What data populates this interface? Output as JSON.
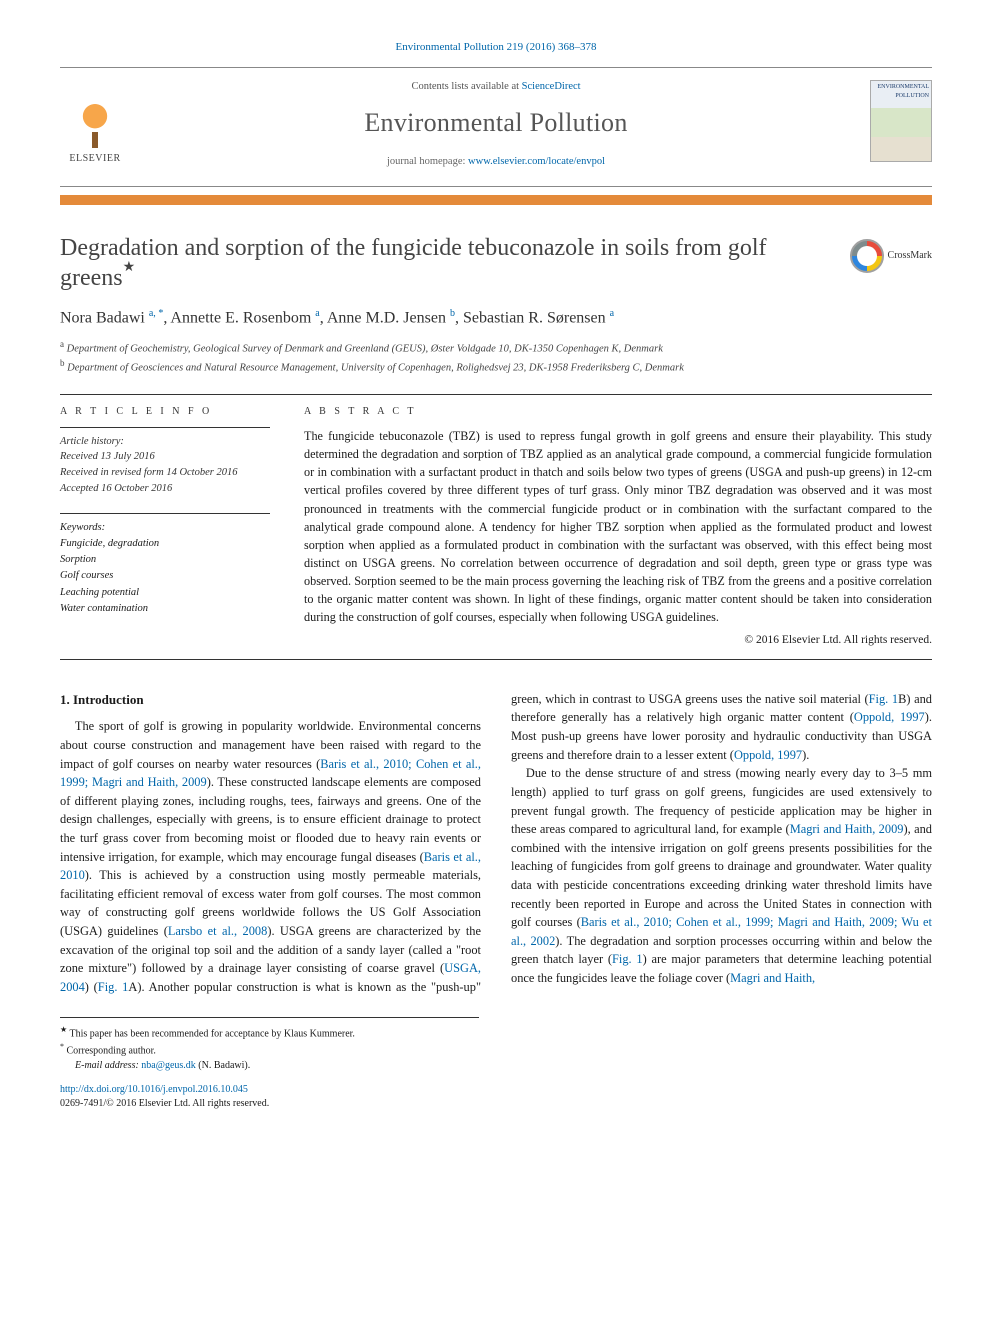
{
  "journal_ref": "Environmental Pollution 219 (2016) 368–378",
  "contents_line_prefix": "Contents lists available at ",
  "contents_line_link": "ScienceDirect",
  "journal_name": "Environmental Pollution",
  "homepage_prefix": "journal homepage: ",
  "homepage_link": "www.elsevier.com/locate/envpol",
  "publisher": "ELSEVIER",
  "cover_label": "ENVIRONMENTAL POLLUTION",
  "crossmark_label": "CrossMark",
  "title": "Degradation and sorption of the fungicide tebuconazole in soils from golf greens",
  "title_star": "★",
  "authors_html": "Nora Badawi <sup>a, *</sup>, Annette E. Rosenbom <sup>a</sup>, Anne M.D. Jensen <sup>b</sup>, Sebastian R. Sørensen <sup>a</sup>",
  "affiliations": {
    "a": "Department of Geochemistry, Geological Survey of Denmark and Greenland (GEUS), Øster Voldgade 10, DK-1350 Copenhagen K, Denmark",
    "b": "Department of Geosciences and Natural Resource Management, University of Copenhagen, Rolighedsvej 23, DK-1958 Frederiksberg C, Denmark"
  },
  "article_info_head": "A R T I C L E  I N F O",
  "abstract_head": "A B S T R A C T",
  "history_label": "Article history:",
  "history": {
    "received": "Received 13 July 2016",
    "revised": "Received in revised form 14 October 2016",
    "accepted": "Accepted 16 October 2016"
  },
  "keywords_label": "Keywords:",
  "keywords": [
    "Fungicide, degradation",
    "Sorption",
    "Golf courses",
    "Leaching potential",
    "Water contamination"
  ],
  "abstract": "The fungicide tebuconazole (TBZ) is used to repress fungal growth in golf greens and ensure their playability. This study determined the degradation and sorption of TBZ applied as an analytical grade compound, a commercial fungicide formulation or in combination with a surfactant product in thatch and soils below two types of greens (USGA and push-up greens) in 12-cm vertical profiles covered by three different types of turf grass. Only minor TBZ degradation was observed and it was most pronounced in treatments with the commercial fungicide product or in combination with the surfactant compared to the analytical grade compound alone. A tendency for higher TBZ sorption when applied as the formulated product and lowest sorption when applied as a formulated product in combination with the surfactant was observed, with this effect being most distinct on USGA greens. No correlation between occurrence of degradation and soil depth, green type or grass type was observed. Sorption seemed to be the main process governing the leaching risk of TBZ from the greens and a positive correlation to the organic matter content was shown. In light of these findings, organic matter content should be taken into consideration during the construction of golf courses, especially when following USGA guidelines.",
  "copyright": "© 2016 Elsevier Ltd. All rights reserved.",
  "section1_head": "1. Introduction",
  "body_p1": "The sport of golf is growing in popularity worldwide. Environmental concerns about course construction and management have been raised with regard to the impact of golf courses on nearby water resources (",
  "cite1": "Baris et al., 2010; Cohen et al., 1999; Magri and Haith, 2009",
  "body_p1b": "). These constructed landscape elements are composed of different playing zones, including roughs, tees, fairways and greens. One of the design challenges, especially with greens, is to ensure efficient drainage to protect the turf grass cover from becoming moist or flooded due to heavy rain events or intensive irrigation, for example, which may encourage fungal diseases (",
  "cite2": "Baris et al., 2010",
  "body_p1c": "). This is achieved by a construction using mostly permeable materials, facilitating efficient removal of excess water from golf courses. The most common way of constructing golf greens worldwide follows the US Golf Association (USGA) guidelines (",
  "cite3": "Larsbo et al., 2008",
  "body_p1d": "). USGA greens are characterized by the excavation of the original top soil and the addition of a sandy layer",
  "body_p2a": "(called a \"root zone mixture\") followed by a drainage layer consisting of coarse gravel (",
  "cite4": "USGA, 2004",
  "body_p2b": ") (",
  "cite5": "Fig. 1",
  "body_p2c": "A). Another popular construction is what is known as the \"push-up\" green, which in contrast to USGA greens uses the native soil material (",
  "cite6": "Fig. 1",
  "body_p2d": "B) and therefore generally has a relatively high organic matter content (",
  "cite7": "Oppold, 1997",
  "body_p2e": "). Most push-up greens have lower porosity and hydraulic conductivity than USGA greens and therefore drain to a lesser extent (",
  "cite8": "Oppold, 1997",
  "body_p2f": ").",
  "body_p3a": "Due to the dense structure of and stress (mowing nearly every day to 3–5 mm length) applied to turf grass on golf greens, fungicides are used extensively to prevent fungal growth. The frequency of pesticide application may be higher in these areas compared to agricultural land, for example (",
  "cite9": "Magri and Haith, 2009",
  "body_p3b": "), and combined with the intensive irrigation on golf greens presents possibilities for the leaching of fungicides from golf greens to drainage and groundwater. Water quality data with pesticide concentrations exceeding drinking water threshold limits have recently been reported in Europe and across the United States in connection with golf courses (",
  "cite10": "Baris et al., 2010; Cohen et al., 1999; Magri and Haith, 2009; Wu et al., 2002",
  "body_p3c": "). The degradation and sorption processes occurring within and below the green thatch layer (",
  "cite11": "Fig. 1",
  "body_p3d": ") are major parameters that determine leaching potential once the fungicides leave the foliage cover (",
  "cite12": "Magri and Haith,",
  "fn_star": "This paper has been recommended for acceptance by Klaus Kummerer.",
  "fn_corr": "Corresponding author.",
  "fn_email_lbl": "E-mail address: ",
  "fn_email": "nba@geus.dk",
  "fn_email_who": " (N. Badawi).",
  "doi": "http://dx.doi.org/10.1016/j.envpol.2016.10.045",
  "issn_line": "0269-7491/© 2016 Elsevier Ltd. All rights reserved.",
  "colors": {
    "link": "#0066aa",
    "accent_bar": "#e48a3a",
    "text": "#1a1a1a",
    "muted": "#555555"
  }
}
